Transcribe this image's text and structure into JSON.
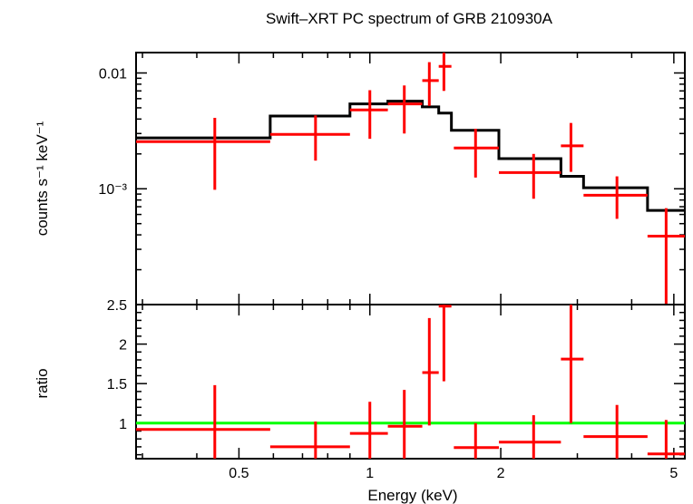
{
  "chart_data": {
    "title": "Swift–XRT PC spectrum of GRB 210930A",
    "xlabel": "Energy (keV)",
    "x_scale": "log",
    "xlim": [
      0.29,
      5.3
    ],
    "x_ticks": [
      {
        "value": 0.5,
        "label": "0.5"
      },
      {
        "value": 1,
        "label": "1"
      },
      {
        "value": 2,
        "label": "2"
      },
      {
        "value": 5,
        "label": "5"
      }
    ],
    "panels": [
      {
        "name": "spectrum",
        "type": "scatter",
        "ylabel": "counts s⁻¹ keV⁻¹",
        "y_scale": "log",
        "ylim": [
          0.0001,
          0.015
        ],
        "y_ticks": [
          {
            "value": 0.01,
            "label": "0.01"
          },
          {
            "value": 0.001,
            "label": "10⁻³"
          }
        ],
        "data": [
          {
            "x": 0.44,
            "xlo": 0.29,
            "xhi": 0.59,
            "y": 0.00255,
            "ylo": 0.00098,
            "yhi": 0.0041
          },
          {
            "x": 0.75,
            "xlo": 0.59,
            "xhi": 0.9,
            "y": 0.00295,
            "ylo": 0.00175,
            "yhi": 0.0043
          },
          {
            "x": 1.0,
            "xlo": 0.9,
            "xhi": 1.1,
            "y": 0.0048,
            "ylo": 0.0027,
            "yhi": 0.0071
          },
          {
            "x": 1.2,
            "xlo": 1.1,
            "xhi": 1.32,
            "y": 0.0054,
            "ylo": 0.003,
            "yhi": 0.0078
          },
          {
            "x": 1.37,
            "xlo": 1.32,
            "xhi": 1.44,
            "y": 0.0086,
            "ylo": 0.0052,
            "yhi": 0.0124
          },
          {
            "x": 1.48,
            "xlo": 1.44,
            "xhi": 1.54,
            "y": 0.0114,
            "ylo": 0.007,
            "yhi": 0.016
          },
          {
            "x": 1.75,
            "xlo": 1.56,
            "xhi": 1.98,
            "y": 0.00225,
            "ylo": 0.00125,
            "yhi": 0.0033
          },
          {
            "x": 2.38,
            "xlo": 1.98,
            "xhi": 2.75,
            "y": 0.00138,
            "ylo": 0.00082,
            "yhi": 0.002
          },
          {
            "x": 2.9,
            "xlo": 2.75,
            "xhi": 3.1,
            "y": 0.00235,
            "ylo": 0.0014,
            "yhi": 0.0037
          },
          {
            "x": 3.7,
            "xlo": 3.1,
            "xhi": 4.35,
            "y": 0.00088,
            "ylo": 0.00055,
            "yhi": 0.00128
          },
          {
            "x": 4.8,
            "xlo": 4.35,
            "xhi": 5.3,
            "y": 0.00039,
            "ylo": 0.0001,
            "yhi": 0.00068
          }
        ],
        "model_steps": [
          {
            "x0": 0.29,
            "x1": 0.59,
            "y": 0.00275
          },
          {
            "x0": 0.59,
            "x1": 0.9,
            "y": 0.00425
          },
          {
            "x0": 0.9,
            "x1": 1.1,
            "y": 0.0054
          },
          {
            "x0": 1.1,
            "x1": 1.32,
            "y": 0.0057
          },
          {
            "x0": 1.32,
            "x1": 1.44,
            "y": 0.0051
          },
          {
            "x0": 1.44,
            "x1": 1.54,
            "y": 0.0045
          },
          {
            "x0": 1.54,
            "x1": 1.98,
            "y": 0.0032
          },
          {
            "x0": 1.98,
            "x1": 2.75,
            "y": 0.00182
          },
          {
            "x0": 2.75,
            "x1": 3.1,
            "y": 0.00128
          },
          {
            "x0": 3.1,
            "x1": 4.35,
            "y": 0.00102
          },
          {
            "x0": 4.35,
            "x1": 5.3,
            "y": 0.00065
          }
        ]
      },
      {
        "name": "ratio",
        "type": "scatter",
        "ylabel": "ratio",
        "y_scale": "linear",
        "ylim": [
          0.55,
          2.5
        ],
        "y_ticks": [
          {
            "value": 1,
            "label": "1"
          },
          {
            "value": 1.5,
            "label": "1.5"
          },
          {
            "value": 2,
            "label": "2"
          },
          {
            "value": 2.5,
            "label": "2.5"
          }
        ],
        "reference_line": 1.0,
        "data": [
          {
            "x": 0.44,
            "xlo": 0.29,
            "xhi": 0.59,
            "y": 0.92,
            "ylo": 0.36,
            "yhi": 1.48
          },
          {
            "x": 0.75,
            "xlo": 0.59,
            "xhi": 0.9,
            "y": 0.7,
            "ylo": 0.4,
            "yhi": 1.02
          },
          {
            "x": 1.0,
            "xlo": 0.9,
            "xhi": 1.1,
            "y": 0.87,
            "ylo": 0.47,
            "yhi": 1.27
          },
          {
            "x": 1.2,
            "xlo": 1.1,
            "xhi": 1.32,
            "y": 0.96,
            "ylo": 0.52,
            "yhi": 1.42
          },
          {
            "x": 1.37,
            "xlo": 1.32,
            "xhi": 1.44,
            "y": 1.64,
            "ylo": 0.97,
            "yhi": 2.33
          },
          {
            "x": 1.48,
            "xlo": 1.44,
            "xhi": 1.54,
            "y": 2.48,
            "ylo": 1.53,
            "yhi": 2.6
          },
          {
            "x": 1.75,
            "xlo": 1.56,
            "xhi": 1.98,
            "y": 0.69,
            "ylo": 0.38,
            "yhi": 1.0
          },
          {
            "x": 2.38,
            "xlo": 1.98,
            "xhi": 2.75,
            "y": 0.76,
            "ylo": 0.45,
            "yhi": 1.1
          },
          {
            "x": 2.9,
            "xlo": 2.75,
            "xhi": 3.1,
            "y": 1.81,
            "ylo": 1.0,
            "yhi": 2.62
          },
          {
            "x": 3.7,
            "xlo": 3.1,
            "xhi": 4.35,
            "y": 0.83,
            "ylo": 0.47,
            "yhi": 1.23
          },
          {
            "x": 4.8,
            "xlo": 4.35,
            "xhi": 5.3,
            "y": 0.61,
            "ylo": 0.15,
            "yhi": 1.04
          }
        ]
      }
    ],
    "colors": {
      "data": "#ff0000",
      "model": "#000000",
      "reference": "#00ff00",
      "frame": "#000000"
    }
  }
}
